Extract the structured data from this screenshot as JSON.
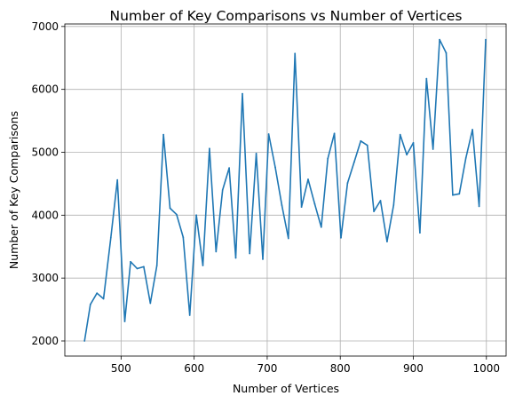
{
  "chart_data": {
    "type": "line",
    "title": "Number of Key Comparisons vs Number of Vertices",
    "xlabel": "Number of Vertices",
    "ylabel": "Number of Key Comparisons",
    "xlim": [
      423,
      1027
    ],
    "ylim": [
      1760,
      7040
    ],
    "xticks": [
      500,
      600,
      700,
      800,
      900,
      1000
    ],
    "yticks": [
      2000,
      3000,
      4000,
      5000,
      6000,
      7000
    ],
    "grid": true,
    "color": "#1f77b4",
    "series": [
      {
        "x": [
          450,
          458,
          467,
          476,
          486,
          495,
          505,
          513,
          522,
          531,
          540,
          549,
          558,
          567,
          576,
          585,
          594,
          603,
          612,
          621,
          630,
          639,
          648,
          657,
          666,
          676,
          685,
          694,
          702,
          711,
          720,
          729,
          738,
          747,
          756,
          765,
          774,
          783,
          792,
          801,
          810,
          819,
          828,
          837,
          846,
          855,
          864,
          873,
          882,
          891,
          900,
          909,
          918,
          927,
          936,
          945,
          954,
          963,
          972,
          981,
          990,
          999
        ],
        "y": [
          2000,
          2580,
          2760,
          2670,
          3640,
          4560,
          2310,
          3260,
          3150,
          3180,
          2600,
          3200,
          5280,
          4110,
          4010,
          3650,
          2410,
          4000,
          3200,
          5060,
          3420,
          4400,
          4750,
          3320,
          5930,
          3390,
          4980,
          3300,
          5290,
          4760,
          4160,
          3630,
          6570,
          4130,
          4570,
          4180,
          3810,
          4900,
          5300,
          3640,
          4510,
          4840,
          5180,
          5110,
          4060,
          4230,
          3580,
          4160,
          5280,
          4960,
          5150,
          3720,
          6170,
          5050,
          6790,
          6580,
          4320,
          4340,
          4910,
          5360,
          4140,
          6790
        ]
      }
    ]
  }
}
